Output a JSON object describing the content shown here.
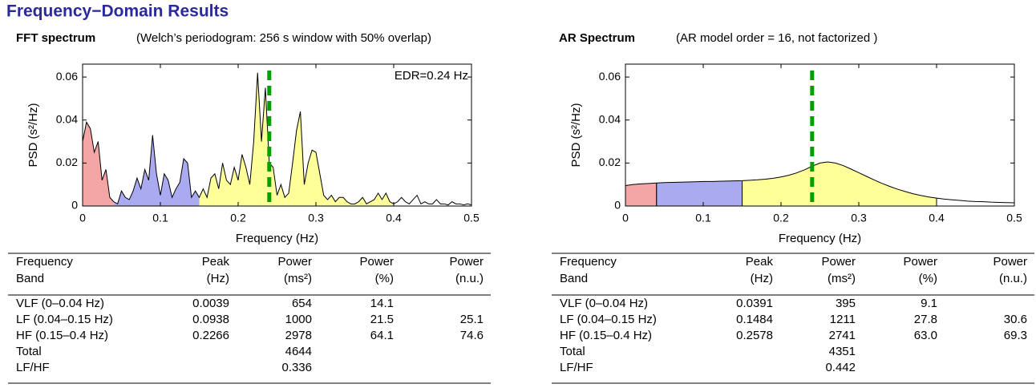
{
  "title": "Frequency−Domain Results",
  "chart_data": [
    {
      "type": "area",
      "title": "FFT spectrum",
      "subtitle": "(Welch’s periodogram: 256 s window with 50% overlap)",
      "xlabel": "Frequency (Hz)",
      "ylabel": "PSD (s²/Hz)",
      "xlim": [
        0,
        0.5
      ],
      "xticks": [
        0,
        0.1,
        0.2,
        0.3,
        0.4,
        0.5
      ],
      "ylim": [
        0,
        0.066
      ],
      "yticks": [
        0,
        0.02,
        0.04,
        0.06
      ],
      "annotation": "EDR=0.24 Hz",
      "edr_line": {
        "x": 0.24,
        "color": "#00a000"
      },
      "bands": [
        {
          "range": [
            0,
            0.04
          ],
          "color": "#f4a6a6"
        },
        {
          "range": [
            0.04,
            0.15
          ],
          "color": "#aaaaf0"
        },
        {
          "range": [
            0.15,
            0.4
          ],
          "color": "#ffff99"
        }
      ],
      "x": [
        0,
        0.005,
        0.01,
        0.015,
        0.02,
        0.025,
        0.03,
        0.035,
        0.04,
        0.045,
        0.05,
        0.055,
        0.06,
        0.065,
        0.07,
        0.075,
        0.08,
        0.085,
        0.09,
        0.095,
        0.1,
        0.105,
        0.11,
        0.115,
        0.12,
        0.125,
        0.13,
        0.135,
        0.14,
        0.145,
        0.15,
        0.155,
        0.16,
        0.165,
        0.17,
        0.175,
        0.18,
        0.185,
        0.19,
        0.195,
        0.2,
        0.205,
        0.21,
        0.215,
        0.22,
        0.225,
        0.23,
        0.235,
        0.24,
        0.245,
        0.25,
        0.255,
        0.26,
        0.265,
        0.27,
        0.275,
        0.28,
        0.285,
        0.29,
        0.295,
        0.3,
        0.305,
        0.31,
        0.315,
        0.32,
        0.325,
        0.33,
        0.335,
        0.34,
        0.345,
        0.35,
        0.355,
        0.36,
        0.365,
        0.37,
        0.375,
        0.38,
        0.385,
        0.39,
        0.395,
        0.4,
        0.405,
        0.41,
        0.415,
        0.42,
        0.425,
        0.43,
        0.435,
        0.44,
        0.445,
        0.45,
        0.455,
        0.46,
        0.465,
        0.47,
        0.475,
        0.48,
        0.485,
        0.49,
        0.495,
        0.5
      ],
      "values": [
        0.03,
        0.039,
        0.036,
        0.025,
        0.03,
        0.012,
        0.017,
        0.004,
        0.002,
        0.001,
        0.007,
        0.004,
        0.003,
        0.007,
        0.013,
        0.008,
        0.017,
        0.012,
        0.033,
        0.015,
        0.005,
        0.015,
        0.012,
        0.004,
        0.008,
        0.011,
        0.022,
        0.02,
        0.004,
        0.007,
        0.004,
        0.008,
        0.004,
        0.013,
        0.015,
        0.008,
        0.02,
        0.012,
        0.01,
        0.018,
        0.012,
        0.024,
        0.018,
        0.01,
        0.03,
        0.062,
        0.03,
        0.055,
        0.02,
        0.018,
        0.005,
        0.01,
        0.004,
        0.006,
        0.02,
        0.035,
        0.044,
        0.01,
        0.02,
        0.026,
        0.025,
        0.015,
        0.005,
        0.003,
        0.005,
        0.002,
        0.004,
        0.004,
        0.002,
        0.001,
        0.001,
        0.002,
        0.004,
        0.001,
        0.002,
        0.003,
        0.006,
        0.003,
        0.006,
        0.002,
        0.001,
        0.002,
        0.004,
        0.002,
        0.001,
        0.003,
        0.005,
        0.001,
        0.002,
        0.001,
        0.001,
        0.003,
        0.001,
        0.001,
        0.0005,
        0.002,
        0.001,
        0.001,
        0.0005,
        0.001,
        0.0005
      ]
    },
    {
      "type": "area",
      "title": "AR Spectrum",
      "subtitle": "(AR model order = 16, not factorized )",
      "xlabel": "Frequency (Hz)",
      "ylabel": "PSD (s²/Hz)",
      "xlim": [
        0,
        0.5
      ],
      "xticks": [
        0,
        0.1,
        0.2,
        0.3,
        0.4,
        0.5
      ],
      "ylim": [
        0,
        0.066
      ],
      "yticks": [
        0,
        0.02,
        0.04,
        0.06
      ],
      "edr_line": {
        "x": 0.24,
        "color": "#00a000"
      },
      "bands": [
        {
          "range": [
            0,
            0.04
          ],
          "color": "#f4a6a6"
        },
        {
          "range": [
            0.04,
            0.15
          ],
          "color": "#aaaaf0"
        },
        {
          "range": [
            0.15,
            0.4
          ],
          "color": "#ffff99"
        }
      ],
      "x": [
        0,
        0.01,
        0.02,
        0.03,
        0.04,
        0.05,
        0.06,
        0.07,
        0.08,
        0.09,
        0.1,
        0.11,
        0.12,
        0.13,
        0.14,
        0.15,
        0.16,
        0.17,
        0.18,
        0.19,
        0.2,
        0.21,
        0.22,
        0.23,
        0.24,
        0.25,
        0.26,
        0.27,
        0.28,
        0.29,
        0.3,
        0.31,
        0.32,
        0.33,
        0.34,
        0.35,
        0.36,
        0.37,
        0.38,
        0.39,
        0.4,
        0.41,
        0.42,
        0.43,
        0.44,
        0.45,
        0.46,
        0.47,
        0.48,
        0.49,
        0.5
      ],
      "values": [
        0.0095,
        0.01,
        0.0103,
        0.0105,
        0.0107,
        0.0109,
        0.011,
        0.0111,
        0.0112,
        0.0113,
        0.0114,
        0.0114,
        0.0115,
        0.0116,
        0.0117,
        0.0118,
        0.012,
        0.0122,
        0.0125,
        0.0129,
        0.0135,
        0.0143,
        0.0154,
        0.0168,
        0.0185,
        0.02,
        0.0205,
        0.02,
        0.0188,
        0.0172,
        0.0155,
        0.0138,
        0.0121,
        0.0105,
        0.0091,
        0.0078,
        0.0067,
        0.0057,
        0.0049,
        0.0042,
        0.0037,
        0.0032,
        0.0029,
        0.0026,
        0.0023,
        0.0021,
        0.002,
        0.0018,
        0.0017,
        0.0016,
        0.0015
      ]
    }
  ],
  "tables": [
    {
      "header": [
        [
          "Frequency",
          "Band"
        ],
        [
          "Peak",
          "(Hz)"
        ],
        [
          "Power",
          "(ms²)"
        ],
        [
          "Power",
          "(%)"
        ],
        [
          "Power",
          "(n.u.)"
        ]
      ],
      "rows": [
        [
          "VLF (0–0.04 Hz)",
          "0.0039",
          "654",
          "14.1",
          null
        ],
        [
          "LF (0.04–0.15 Hz)",
          "0.0938",
          "1000",
          "21.5",
          "25.1"
        ],
        [
          "HF (0.15–0.4 Hz)",
          "0.2266",
          "2978",
          "64.1",
          "74.6"
        ],
        [
          "Total",
          null,
          "4644",
          null,
          null
        ],
        [
          "LF/HF",
          null,
          "0.336",
          null,
          null
        ]
      ]
    },
    {
      "header": [
        [
          "Frequency",
          "Band"
        ],
        [
          "Peak",
          "(Hz)"
        ],
        [
          "Power",
          "(ms²)"
        ],
        [
          "Power",
          "(%)"
        ],
        [
          "Power",
          "(n.u.)"
        ]
      ],
      "rows": [
        [
          "VLF (0–0.04 Hz)",
          "0.0391",
          "395",
          "9.1",
          null
        ],
        [
          "LF (0.04–0.15 Hz)",
          "0.1484",
          "1211",
          "27.8",
          "30.6"
        ],
        [
          "HF (0.15–0.4 Hz)",
          "0.2578",
          "2741",
          "63.0",
          "69.3"
        ],
        [
          "Total",
          null,
          "4351",
          null,
          null
        ],
        [
          "LF/HF",
          null,
          "0.442",
          null,
          null
        ]
      ]
    }
  ]
}
